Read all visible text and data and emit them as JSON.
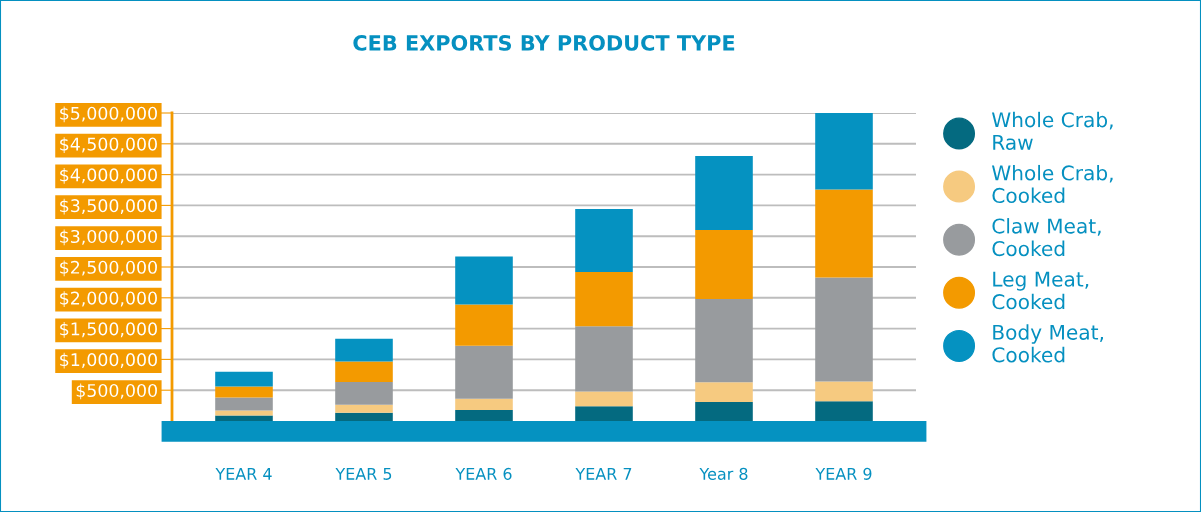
{
  "chart_data": {
    "type": "bar",
    "stacked": true,
    "title": "CEB EXPORTS BY PRODUCT TYPE",
    "categories": [
      "YEAR 4",
      "YEAR 5",
      "YEAR 6",
      "YEAR 7",
      "Year 8",
      "YEAR 9"
    ],
    "series": [
      {
        "name": "Whole Crab,\nRaw",
        "color": "#046a80",
        "values": [
          90000,
          135000,
          180000,
          240000,
          310000,
          320000
        ]
      },
      {
        "name": "Whole Crab,\nCooked",
        "color": "#f6ca80",
        "values": [
          80000,
          130000,
          180000,
          240000,
          320000,
          320000
        ]
      },
      {
        "name": "Claw Meat,\nCooked",
        "color": "#989b9e",
        "values": [
          210000,
          370000,
          860000,
          1060000,
          1350000,
          1690000
        ]
      },
      {
        "name": "Leg Meat,\nCooked",
        "color": "#f39a00",
        "values": [
          180000,
          330000,
          670000,
          880000,
          1120000,
          1430000
        ]
      },
      {
        "name": "Body Meat,\nCooked",
        "color": "#0592c1",
        "values": [
          240000,
          370000,
          780000,
          1020000,
          1200000,
          1240000
        ]
      }
    ],
    "ylim": [
      0,
      5000000
    ],
    "yticks": [
      {
        "value": 500000,
        "label": "$500,000"
      },
      {
        "value": 1000000,
        "label": "$1,000,000"
      },
      {
        "value": 1500000,
        "label": "$1,500,000"
      },
      {
        "value": 2000000,
        "label": "$2,000,000"
      },
      {
        "value": 2500000,
        "label": "$2,500,000"
      },
      {
        "value": 3000000,
        "label": "$3,000,000"
      },
      {
        "value": 3500000,
        "label": "$3,500,000"
      },
      {
        "value": 4000000,
        "label": "$4,000,000"
      },
      {
        "value": 4500000,
        "label": "$4,500,000"
      },
      {
        "value": 5000000,
        "label": "$5,000,000"
      }
    ],
    "grid": "y",
    "legend": "right",
    "marker": "circle"
  }
}
